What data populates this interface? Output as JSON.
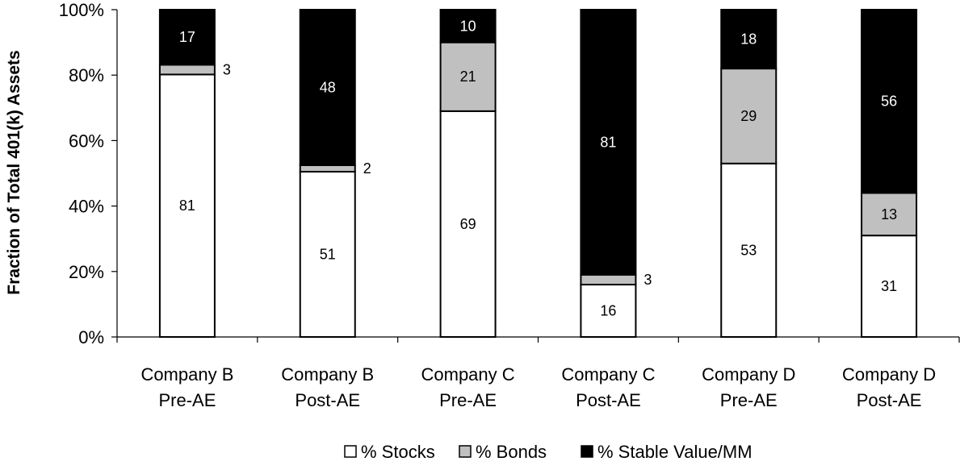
{
  "chart_data": {
    "type": "bar",
    "stacked": true,
    "percent_stacked": true,
    "categories": [
      [
        "Company B",
        "Pre-AE"
      ],
      [
        "Company B",
        "Post-AE"
      ],
      [
        "Company C",
        "Pre-AE"
      ],
      [
        "Company C",
        "Post-AE"
      ],
      [
        "Company D",
        "Pre-AE"
      ],
      [
        "Company D",
        "Post-AE"
      ]
    ],
    "series": [
      {
        "name": "% Stocks",
        "color": "#ffffff",
        "values": [
          81,
          51,
          69,
          16,
          53,
          31
        ]
      },
      {
        "name": "% Bonds",
        "color": "#c0c0c0",
        "values": [
          3,
          2,
          21,
          3,
          29,
          13
        ]
      },
      {
        "name": "% Stable Value/MM",
        "color": "#000000",
        "values": [
          17,
          48,
          10,
          81,
          18,
          56
        ]
      }
    ],
    "ylabel": "Fraction of Total 401(k) Assets",
    "xlabel": "",
    "ylim": [
      0,
      100
    ],
    "yticks": [
      "0%",
      "20%",
      "40%",
      "60%",
      "80%",
      "100%"
    ],
    "grid": false,
    "legend_position": "bottom"
  }
}
